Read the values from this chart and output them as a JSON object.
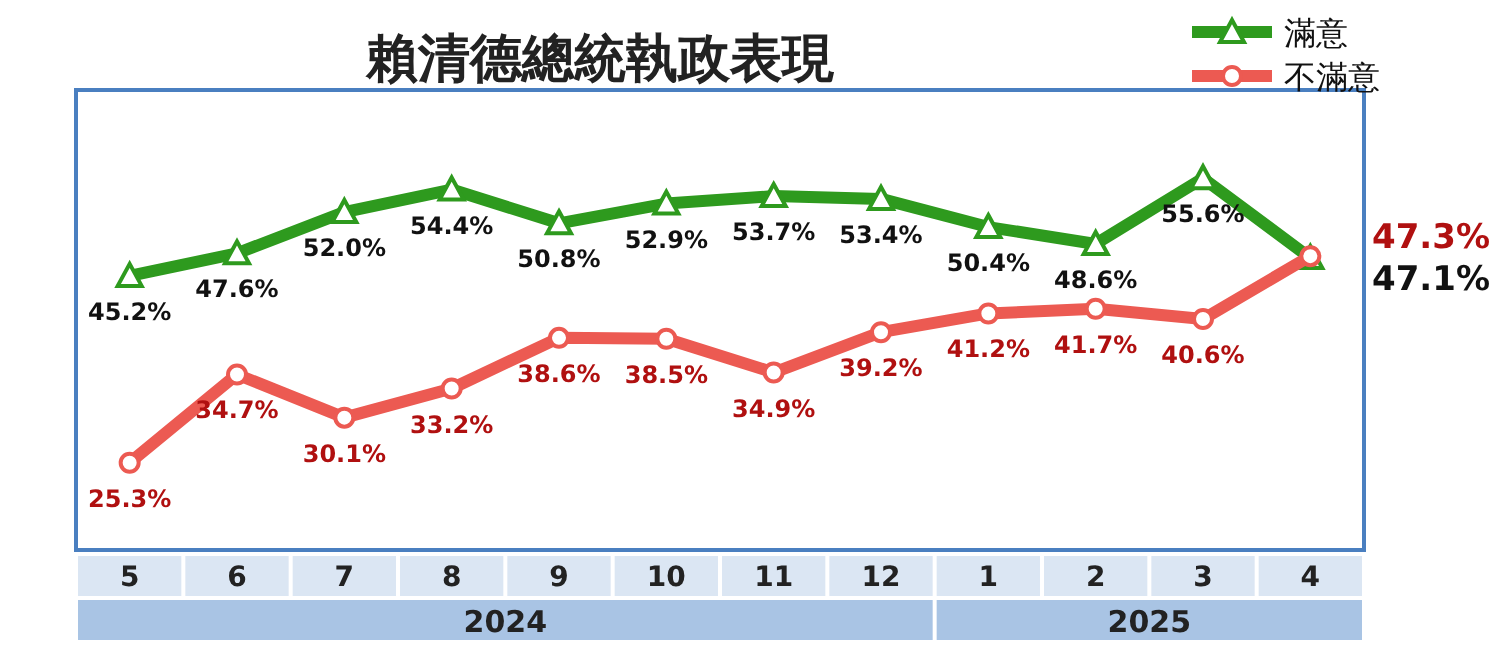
{
  "chart_data": {
    "type": "line",
    "title": "賴清德總統執政表現",
    "categories": [
      "5",
      "6",
      "7",
      "8",
      "9",
      "10",
      "11",
      "12",
      "1",
      "2",
      "3",
      "4"
    ],
    "series": [
      {
        "name": "滿意",
        "color": "#2e9a1e",
        "marker": "triangle",
        "values": [
          45.2,
          47.6,
          52.0,
          54.4,
          50.8,
          52.9,
          53.7,
          53.4,
          50.4,
          48.6,
          55.6,
          47.1
        ],
        "value_labels": [
          "45.2%",
          "47.6%",
          "52.0%",
          "54.4%",
          "50.8%",
          "52.9%",
          "53.7%",
          "53.4%",
          "50.4%",
          "48.6%",
          "55.6%",
          "47.1%"
        ]
      },
      {
        "name": "不滿意",
        "color": "#ec5a52",
        "marker": "circle",
        "values": [
          25.3,
          34.7,
          30.1,
          33.2,
          38.6,
          38.5,
          34.9,
          39.2,
          41.2,
          41.7,
          40.6,
          47.3
        ],
        "value_labels": [
          "25.3%",
          "34.7%",
          "30.1%",
          "33.2%",
          "38.6%",
          "38.5%",
          "34.9%",
          "39.2%",
          "41.2%",
          "41.7%",
          "40.6%",
          "47.3%"
        ]
      }
    ],
    "ylim": [
      16,
      65
    ],
    "tick_labels": "x",
    "legend": "top right",
    "annotations": [
      "2024",
      "2025"
    ]
  }
}
